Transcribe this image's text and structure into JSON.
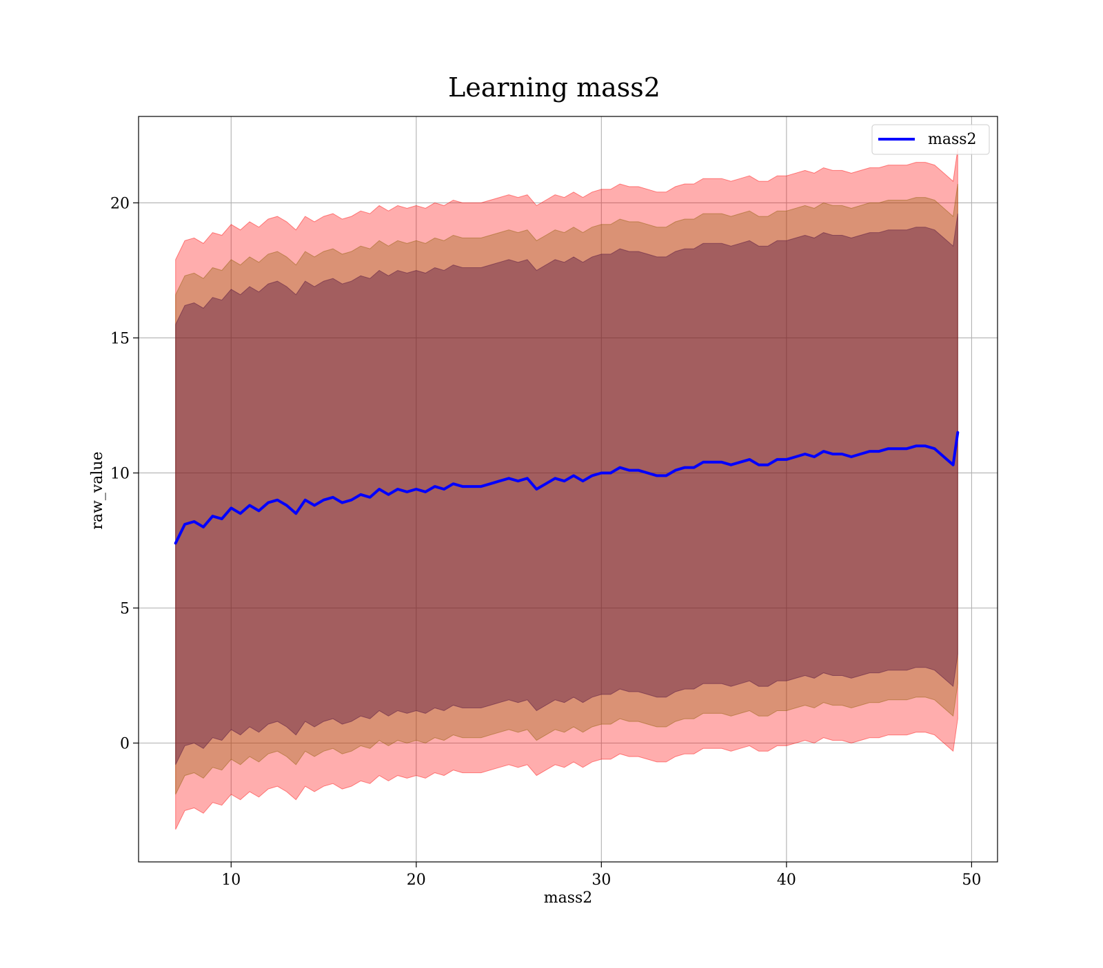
{
  "chart_data": {
    "type": "line",
    "title": "Learning mass2",
    "xlabel": "mass2",
    "ylabel": "raw_value",
    "xlim": [
      5,
      51.4
    ],
    "ylim": [
      -4.4,
      23.2
    ],
    "x_ticks": [
      10,
      20,
      30,
      40,
      50
    ],
    "y_ticks": [
      0,
      5,
      10,
      15,
      20
    ],
    "grid": true,
    "legend_position": "top-right",
    "series": [
      {
        "name": "mass2",
        "color": "#0000ff",
        "x": [
          7,
          7.5,
          8,
          8.5,
          9,
          9.5,
          10,
          10.5,
          11,
          11.5,
          12,
          12.5,
          13,
          13.5,
          14,
          14.5,
          15,
          15.5,
          16,
          16.5,
          17,
          17.5,
          18,
          18.5,
          19,
          19.5,
          20,
          20.5,
          21,
          21.5,
          22,
          22.5,
          23,
          23.5,
          24,
          24.5,
          25,
          25.5,
          26,
          26.5,
          27,
          27.5,
          28,
          28.5,
          29,
          29.5,
          30,
          30.5,
          31,
          31.5,
          32,
          32.5,
          33,
          33.5,
          34,
          34.5,
          35,
          35.5,
          36,
          36.5,
          37,
          37.5,
          38,
          38.5,
          39,
          39.5,
          40,
          40.5,
          41,
          41.5,
          42,
          42.5,
          43,
          43.5,
          44,
          44.5,
          45,
          45.5,
          46,
          46.5,
          47,
          47.5,
          48,
          48.5,
          49,
          49.25
        ],
        "values": [
          7.4,
          8.1,
          8.2,
          8.0,
          8.4,
          8.3,
          8.7,
          8.5,
          8.8,
          8.6,
          8.9,
          9.0,
          8.8,
          8.5,
          9.0,
          8.8,
          9.0,
          9.1,
          8.9,
          9.0,
          9.2,
          9.1,
          9.4,
          9.2,
          9.4,
          9.3,
          9.4,
          9.3,
          9.5,
          9.4,
          9.6,
          9.5,
          9.5,
          9.5,
          9.6,
          9.7,
          9.8,
          9.7,
          9.8,
          9.4,
          9.6,
          9.8,
          9.7,
          9.9,
          9.7,
          9.9,
          10.0,
          10.0,
          10.2,
          10.1,
          10.1,
          10.0,
          9.9,
          9.9,
          10.1,
          10.2,
          10.2,
          10.4,
          10.4,
          10.4,
          10.3,
          10.4,
          10.5,
          10.3,
          10.3,
          10.5,
          10.5,
          10.6,
          10.7,
          10.6,
          10.8,
          10.7,
          10.7,
          10.6,
          10.7,
          10.8,
          10.8,
          10.9,
          10.9,
          10.9,
          11.0,
          11.0,
          10.9,
          10.6,
          10.3,
          11.5
        ]
      }
    ],
    "bands": [
      {
        "color": "#ff0000",
        "opacity": 0.32,
        "upper_offset": 10.5,
        "lower_offset": -10.6
      },
      {
        "color": "#8b5a00",
        "opacity": 0.32,
        "upper_offset": 9.2,
        "lower_offset": -9.3
      },
      {
        "color": "#4a0a3c",
        "opacity": 0.38,
        "upper_offset": 8.1,
        "lower_offset": -8.2
      }
    ]
  }
}
